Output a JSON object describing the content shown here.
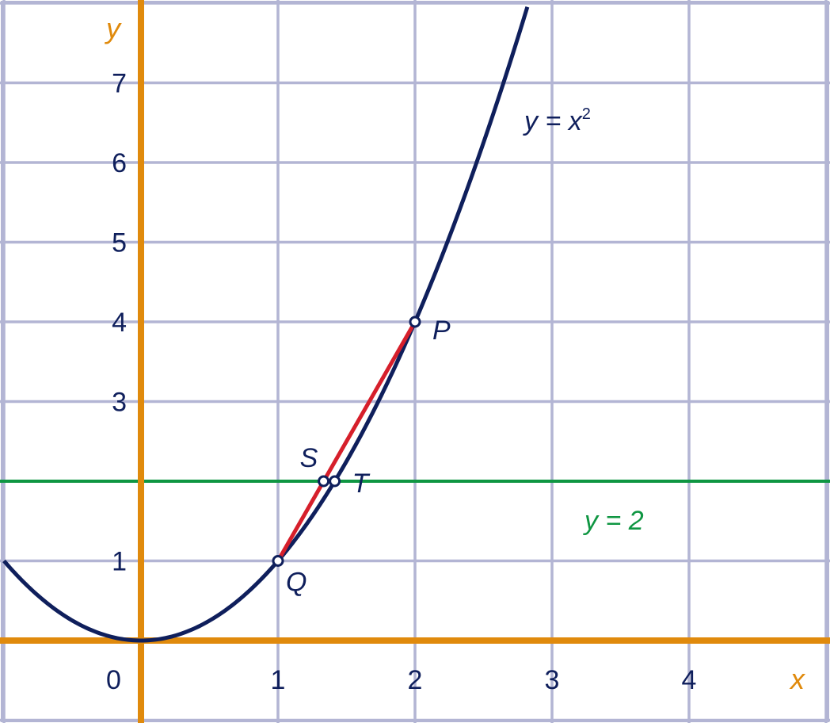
{
  "chart_data": {
    "type": "line",
    "xlim": [
      -1,
      5
    ],
    "ylim": [
      -1,
      8
    ],
    "grid": true,
    "axis_labels": {
      "x": "x",
      "y": "y"
    },
    "x_ticks": [
      "1",
      "2",
      "3",
      "4"
    ],
    "y_ticks": [
      "1",
      "3",
      "4",
      "5",
      "6",
      "7"
    ],
    "origin_label": "0",
    "curve": {
      "label_base": "y = x",
      "label_exp": "2",
      "function": "x^2",
      "x_range": [
        -1,
        2.82
      ]
    },
    "hline": {
      "label": "y = 2",
      "y": 2
    },
    "segment": {
      "from": "Q",
      "to": "P"
    },
    "points": [
      {
        "name": "P",
        "x": 2,
        "y": 4
      },
      {
        "name": "Q",
        "x": 1,
        "y": 1
      },
      {
        "name": "S",
        "x": 1.333,
        "y": 2
      },
      {
        "name": "T",
        "x": 1.414,
        "y": 2
      }
    ],
    "colors": {
      "grid": "#b3b5d4",
      "axes": "#e08a0c",
      "curve": "#0f1f5c",
      "hline": "#0f9642",
      "segment": "#d61f2b",
      "text": "#0f1f5c",
      "axis_label": "#e08a0c",
      "hline_label": "#0f9642"
    }
  }
}
